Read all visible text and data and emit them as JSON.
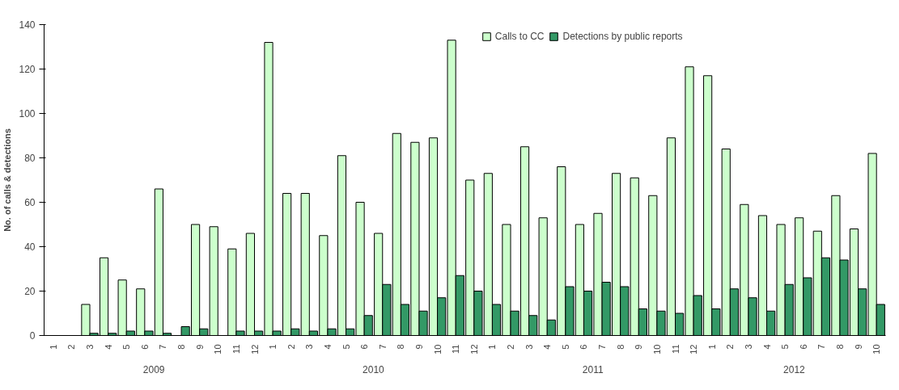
{
  "chart_data": {
    "type": "bar",
    "ylabel": "No. of calls & detections",
    "categories": [
      "1",
      "2",
      "3",
      "4",
      "5",
      "6",
      "7",
      "8",
      "9",
      "10",
      "11",
      "12",
      "1",
      "2",
      "3",
      "4",
      "5",
      "6",
      "7",
      "8",
      "9",
      "10",
      "11",
      "12",
      "1",
      "2",
      "3",
      "4",
      "5",
      "6",
      "7",
      "8",
      "9",
      "10",
      "11",
      "12",
      "1",
      "2",
      "3",
      "4",
      "5",
      "6",
      "7",
      "8",
      "9",
      "10"
    ],
    "annotations": [
      "2009",
      "2010",
      "2011",
      "2012"
    ],
    "series": [
      {
        "name": "Calls to CC",
        "color": "#ccffcc",
        "values": [
          null,
          null,
          14,
          35,
          25,
          21,
          66,
          null,
          50,
          49,
          39,
          46,
          132,
          64,
          64,
          45,
          81,
          60,
          46,
          91,
          87,
          89,
          133,
          70,
          73,
          50,
          85,
          53,
          76,
          50,
          55,
          73,
          71,
          63,
          89,
          121,
          117,
          84,
          59,
          54,
          50,
          53,
          47,
          63,
          48,
          82
        ]
      },
      {
        "name": "Detections by public reports",
        "color": "#339966",
        "values": [
          null,
          null,
          1,
          1,
          2,
          2,
          1,
          4,
          3,
          null,
          2,
          2,
          2,
          3,
          2,
          3,
          3,
          9,
          23,
          14,
          11,
          17,
          27,
          20,
          14,
          11,
          9,
          7,
          22,
          20,
          24,
          22,
          12,
          11,
          10,
          18,
          12,
          21,
          17,
          11,
          23,
          26,
          35,
          34,
          21,
          14
        ]
      }
    ],
    "ylim": [
      0,
      140
    ],
    "yticks": [
      0,
      20,
      40,
      60,
      80,
      100,
      120,
      140
    ],
    "grid": false,
    "legend": "top"
  }
}
